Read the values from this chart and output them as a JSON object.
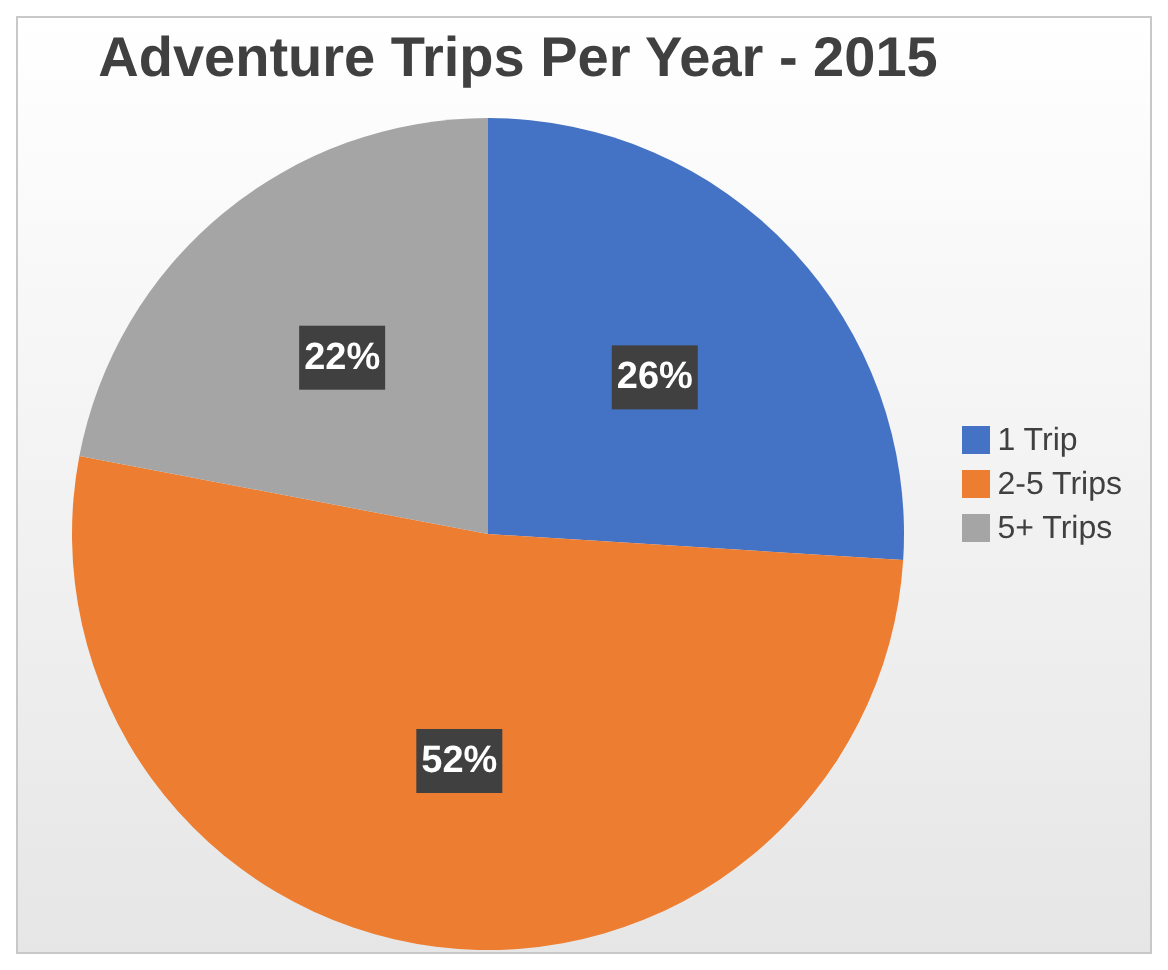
{
  "chart_data": {
    "type": "pie",
    "title": "Adventure Trips Per Year - 2015",
    "categories": [
      "1 Trip",
      "2-5 Trips",
      "5+ Trips"
    ],
    "values": [
      26,
      52,
      22
    ],
    "colors": [
      "#4472c4",
      "#ed7d31",
      "#a5a5a5"
    ],
    "value_labels": [
      "26%",
      "52%",
      "22%"
    ],
    "legend": "right"
  }
}
